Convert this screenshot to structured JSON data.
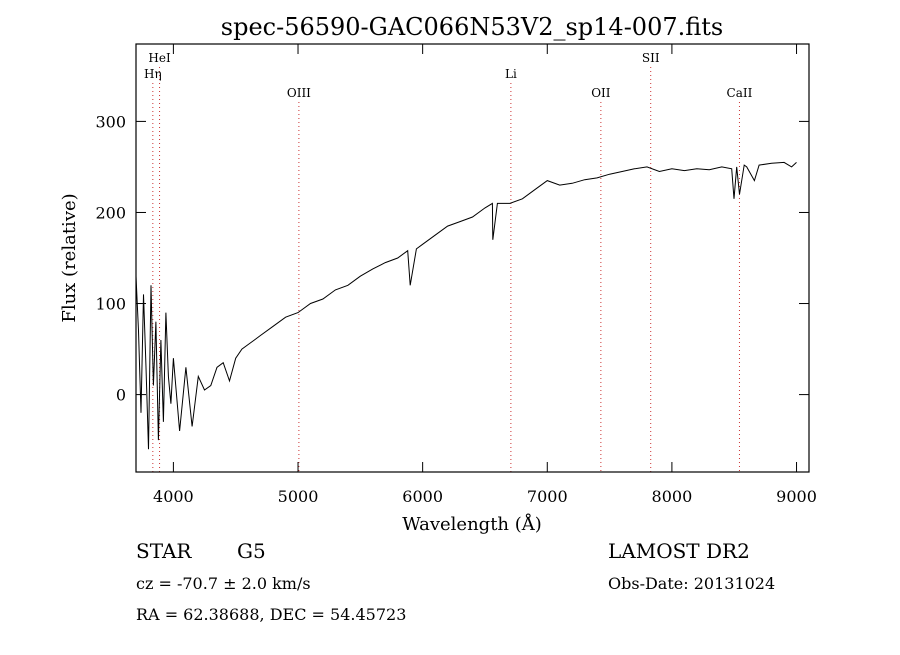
{
  "chart_data": {
    "type": "line",
    "title": "spec-56590-GAC066N53V2_sp14-007.fits",
    "xlabel": "Wavelength (Å)",
    "ylabel": "Flux (relative)",
    "xlim": [
      3700,
      9100
    ],
    "ylim": [
      -85,
      385
    ],
    "x_ticks": [
      4000,
      5000,
      6000,
      7000,
      8000,
      9000
    ],
    "y_ticks": [
      0,
      100,
      200,
      300
    ],
    "grid": false,
    "line_color": "#000000",
    "marker_color": "#cc3333",
    "line_markers": [
      {
        "label": "HeI",
        "x": 3889,
        "row": 0
      },
      {
        "label": "Hη",
        "x": 3835,
        "row": 1
      },
      {
        "label": "OIII",
        "x": 5007,
        "row": 2
      },
      {
        "label": "Li",
        "x": 6708,
        "row": 1
      },
      {
        "label": "OII",
        "x": 7430,
        "row": 2
      },
      {
        "label": "SII",
        "x": 7830,
        "row": 0
      },
      {
        "label": "CaII",
        "x": 8542,
        "row": 2
      }
    ],
    "series": [
      {
        "x": [
          3700,
          3720,
          3740,
          3760,
          3780,
          3800,
          3820,
          3840,
          3860,
          3880,
          3900,
          3920,
          3940,
          3960,
          3980,
          4000,
          4050,
          4100,
          4150,
          4200,
          4250,
          4300,
          4350,
          4400,
          4450,
          4500,
          4550,
          4600,
          4650,
          4700,
          4800,
          4900,
          5000,
          5100,
          5200,
          5300,
          5400,
          5500,
          5600,
          5700,
          5800,
          5880,
          5900,
          5950,
          6000,
          6100,
          6200,
          6300,
          6400,
          6500,
          6560,
          6563,
          6600,
          6700,
          6800,
          6900,
          7000,
          7100,
          7200,
          7300,
          7400,
          7500,
          7600,
          7700,
          7800,
          7900,
          8000,
          8100,
          8200,
          8300,
          8400,
          8480,
          8498,
          8520,
          8542,
          8580,
          8600,
          8662,
          8700,
          8800,
          8900,
          8960,
          9000
        ],
        "y": [
          130,
          70,
          -20,
          110,
          30,
          -60,
          120,
          10,
          80,
          -50,
          60,
          -30,
          90,
          20,
          -10,
          40,
          -40,
          30,
          -35,
          20,
          5,
          10,
          30,
          35,
          15,
          40,
          50,
          55,
          60,
          65,
          75,
          85,
          90,
          100,
          105,
          115,
          120,
          130,
          138,
          145,
          150,
          158,
          120,
          160,
          165,
          175,
          185,
          190,
          195,
          205,
          210,
          170,
          210,
          210,
          215,
          225,
          235,
          230,
          232,
          236,
          238,
          242,
          245,
          248,
          250,
          245,
          248,
          246,
          248,
          247,
          250,
          248,
          215,
          250,
          220,
          252,
          250,
          235,
          252,
          254,
          255,
          250,
          255
        ]
      }
    ]
  },
  "info": {
    "object_class": "STAR",
    "subclass": "G5",
    "survey": "LAMOST DR2",
    "redshift": "cz = -70.7 ± 2.0 km/s",
    "obs_date": "Obs-Date: 20131024",
    "coords": "RA =  62.38688, DEC =  54.45723"
  }
}
